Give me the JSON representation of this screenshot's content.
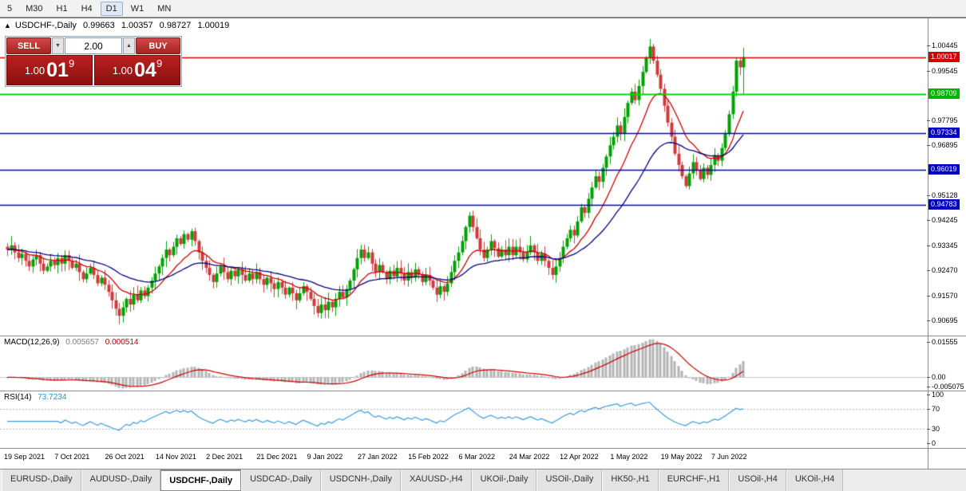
{
  "toolbar": {
    "timeframes": [
      "5",
      "M30",
      "H1",
      "H4",
      "D1",
      "W1",
      "MN"
    ],
    "active": "D1"
  },
  "chart_header": {
    "icon": "▲",
    "symbol": "USDCHF-,Daily",
    "open": "0.99663",
    "high": "1.00357",
    "low": "0.98727",
    "close": "1.00019"
  },
  "trade_panel": {
    "sell_label": "SELL",
    "buy_label": "BUY",
    "stepper": {
      "value": "2.00",
      "down_glyph": "▼",
      "up_glyph": "▲"
    },
    "sell_price": {
      "prefix": "1.00",
      "big": "01",
      "sup": "9"
    },
    "buy_price": {
      "prefix": "1.00",
      "big": "04",
      "sup": "9"
    }
  },
  "chart_data": {
    "type": "candlestick",
    "symbol": "USDCHF-",
    "timeframe": "Daily",
    "price_range": [
      0.9015,
      1.014
    ],
    "up_color": "#00a000",
    "down_color": "#cc3b3b",
    "price_axis_labels": [
      "1.00445",
      "0.99545",
      "0.97795",
      "0.96895",
      "0.95128",
      "0.94245",
      "0.93345",
      "0.92470",
      "0.91570",
      "0.90695"
    ],
    "hlines": [
      {
        "price": 1.00017,
        "label": "1.00017",
        "color": "#d40000",
        "badge": "#d40000",
        "width": 1.5
      },
      {
        "price": 0.98709,
        "label": "0.98709",
        "color": "#00d800",
        "badge": "#00b400",
        "width": 2
      },
      {
        "price": 0.97334,
        "label": "0.97334",
        "color": "#0000c8",
        "badge": "#0000c8",
        "width": 1.5
      },
      {
        "price": 0.96019,
        "label": "0.96019",
        "color": "#0000c8",
        "badge": "#0000c8",
        "width": 1.5
      },
      {
        "price": 0.94783,
        "label": "0.94783",
        "color": "#0000c8",
        "badge": "#0000c8",
        "width": 1.5
      }
    ],
    "date_labels": [
      "19 Sep 2021",
      "7 Oct 2021",
      "26 Oct 2021",
      "14 Nov 2021",
      "2 Dec 2021",
      "21 Dec 2021",
      "9 Jan 2022",
      "27 Jan 2022",
      "15 Feb 2022",
      "6 Mar 2022",
      "24 Mar 2022",
      "12 Apr 2022",
      "1 May 2022",
      "19 May 2022",
      "7 Jun 2022"
    ],
    "bars_per_label": 14,
    "closes": [
      0.932,
      0.9335,
      0.931,
      0.929,
      0.9305,
      0.928,
      0.926,
      0.9285,
      0.93,
      0.927,
      0.9245,
      0.926,
      0.928,
      0.9265,
      0.929,
      0.927,
      0.93,
      0.928,
      0.9255,
      0.927,
      0.924,
      0.9215,
      0.9235,
      0.9255,
      0.923,
      0.92,
      0.922,
      0.9195,
      0.917,
      0.914,
      0.911,
      0.9085,
      0.9115,
      0.9145,
      0.9125,
      0.916,
      0.914,
      0.9175,
      0.9155,
      0.9185,
      0.921,
      0.9235,
      0.926,
      0.929,
      0.932,
      0.93,
      0.933,
      0.936,
      0.934,
      0.9375,
      0.9355,
      0.9385,
      0.935,
      0.931,
      0.928,
      0.9255,
      0.923,
      0.9205,
      0.9235,
      0.926,
      0.924,
      0.9215,
      0.9245,
      0.9225,
      0.925,
      0.923,
      0.921,
      0.9235,
      0.9215,
      0.924,
      0.9215,
      0.9195,
      0.922,
      0.92,
      0.918,
      0.9205,
      0.9185,
      0.916,
      0.9185,
      0.9165,
      0.914,
      0.9165,
      0.919,
      0.917,
      0.9145,
      0.912,
      0.9095,
      0.9125,
      0.9105,
      0.9135,
      0.9115,
      0.9145,
      0.917,
      0.915,
      0.918,
      0.921,
      0.925,
      0.929,
      0.932,
      0.929,
      0.931,
      0.927,
      0.924,
      0.9265,
      0.924,
      0.9215,
      0.9245,
      0.9225,
      0.9255,
      0.9235,
      0.921,
      0.924,
      0.922,
      0.925,
      0.923,
      0.9205,
      0.923,
      0.921,
      0.9185,
      0.916,
      0.919,
      0.917,
      0.92,
      0.924,
      0.928,
      0.931,
      0.935,
      0.94,
      0.944,
      0.94,
      0.936,
      0.932,
      0.929,
      0.932,
      0.935,
      0.9325,
      0.9295,
      0.932,
      0.93,
      0.933,
      0.93,
      0.933,
      0.931,
      0.9285,
      0.931,
      0.9335,
      0.931,
      0.928,
      0.9305,
      0.928,
      0.9255,
      0.923,
      0.926,
      0.929,
      0.933,
      0.936,
      0.939,
      0.937,
      0.942,
      0.947,
      0.945,
      0.95,
      0.954,
      0.958,
      0.956,
      0.961,
      0.965,
      0.969,
      0.972,
      0.976,
      0.973,
      0.979,
      0.984,
      0.988,
      0.985,
      0.99,
      0.995,
      1.0,
      1.004,
      0.999,
      0.994,
      0.989,
      0.983,
      0.977,
      0.972,
      0.966,
      0.962,
      0.958,
      0.9545,
      0.959,
      0.963,
      0.96,
      0.957,
      0.961,
      0.9585,
      0.962,
      0.9655,
      0.9635,
      0.968,
      0.973,
      0.98,
      0.988,
      0.999,
      0.99663,
      1.00019
    ],
    "overrides": {
      "178": {
        "high": 1.0066
      },
      "204": {
        "open": 0.99663,
        "high": 1.00357,
        "low": 0.98727,
        "close": 1.00019
      }
    },
    "moving_averages": [
      {
        "type": "ema",
        "period": 13,
        "color": "#cc0000"
      },
      {
        "type": "ema",
        "period": 34,
        "color": "#000080"
      }
    ],
    "macd": {
      "label": "MACD(12,26,9)",
      "value_main": "0.005657",
      "value_signal": "0.000514",
      "fast": 12,
      "slow": 26,
      "signal_period": 9,
      "hist_color": "#b4b4b4",
      "signal_color": "#cc0000",
      "axis_labels": [
        "0.01555",
        "0.00",
        "-0.005075"
      ]
    },
    "rsi": {
      "label": "RSI(14)",
      "value": "73.7234",
      "period": 14,
      "line_color": "#3a9ad9",
      "levels": [
        70,
        30
      ],
      "axis_labels": [
        "100",
        "70",
        "30",
        "0"
      ]
    }
  },
  "tabs": {
    "active_index": 2,
    "items": [
      "EURUSD-,Daily",
      "AUDUSD-,Daily",
      "USDCHF-,Daily",
      "USDCAD-,Daily",
      "USDCNH-,Daily",
      "XAUUSD-,H4",
      "UKOil-,Daily",
      "USOil-,Daily",
      "HK50-,H1",
      "EURCHF-,H1",
      "USOil-,H4",
      "UKOil-,H4"
    ]
  }
}
